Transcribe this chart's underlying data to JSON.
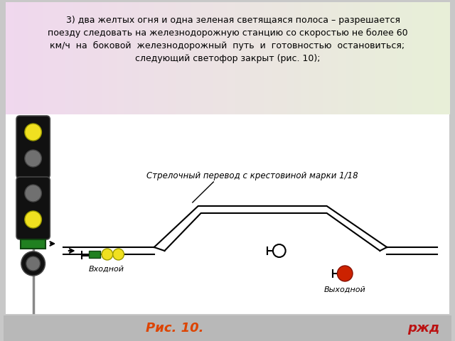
{
  "bg_color": "#c8c8c8",
  "text_box_gradient_left": "#f8e0f0",
  "text_box_gradient_right": "#f0f8e0",
  "text_box_color": "#f5eef5",
  "main_text_line1": "    3) два желтых огня и одна зеленая светящаяся полоса – разрешается",
  "main_text_line2": "поезду следовать на железнодорожную станцию со скоростью не более 60",
  "main_text_line3": "км/ч  на  боковой  железнодорожный  путь  и  готовностью  остановиться;",
  "main_text_line4": "следующий светофор закрыт (рис. 10);",
  "fig_caption": "Рис. 10.",
  "rzd_text": "ржд",
  "signal_body_color": "#111111",
  "signal_lamp_yellow": "#f0e020",
  "signal_lamp_off": "#707070",
  "green_bar_color": "#208020",
  "diagram_bg": "#ffffff",
  "входной_text": "Входной",
  "выходной_text": "Выходной",
  "annotation_text": "Стрелочный перевод с крестовиной марки 1/18"
}
